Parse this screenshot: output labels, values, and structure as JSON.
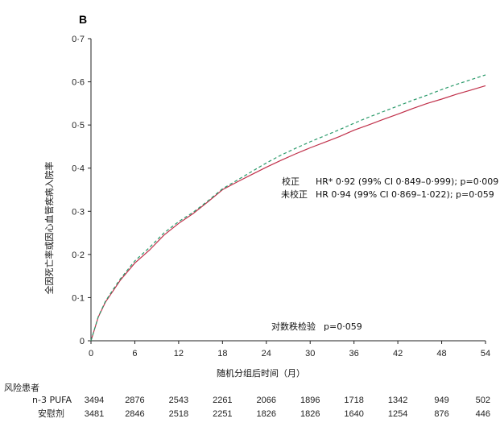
{
  "chart_data": {
    "type": "line",
    "panel_label": "B",
    "xlabel": "随机分组后时间（月）",
    "ylabel": "全因死亡率或因心血管疾病入院率",
    "xlim": [
      0,
      54
    ],
    "ylim": [
      0,
      0.7
    ],
    "xticks": [
      0,
      6,
      12,
      18,
      24,
      30,
      36,
      42,
      48,
      54
    ],
    "xtick_labels": [
      "0",
      "6",
      "12",
      "18",
      "24",
      "30",
      "36",
      "42",
      "48",
      "54"
    ],
    "yticks": [
      0,
      0.1,
      0.2,
      0.3,
      0.4,
      0.5,
      0.6,
      0.7
    ],
    "ytick_labels": [
      "0",
      "0·1",
      "0·2",
      "0·3",
      "0·4",
      "0·5",
      "0·6",
      "0·7"
    ],
    "grid": false,
    "series": [
      {
        "name": "n-3 PUFA",
        "color": "#c0304a",
        "style": "solid",
        "x": [
          0,
          1,
          2,
          3,
          4,
          6,
          8,
          10,
          12,
          14,
          16,
          18,
          20,
          22,
          24,
          26,
          28,
          30,
          32,
          34,
          36,
          38,
          40,
          42,
          44,
          46,
          48,
          50,
          52,
          54
        ],
        "y": [
          0,
          0.055,
          0.09,
          0.115,
          0.14,
          0.18,
          0.21,
          0.245,
          0.272,
          0.295,
          0.322,
          0.35,
          0.368,
          0.385,
          0.402,
          0.418,
          0.433,
          0.447,
          0.46,
          0.473,
          0.488,
          0.5,
          0.513,
          0.525,
          0.538,
          0.55,
          0.56,
          0.571,
          0.581,
          0.591
        ]
      },
      {
        "name": "安慰剂",
        "color": "#2a9a6a",
        "style": "dashed",
        "x": [
          0,
          1,
          2,
          3,
          4,
          6,
          8,
          10,
          12,
          14,
          16,
          18,
          20,
          22,
          24,
          26,
          28,
          30,
          32,
          34,
          36,
          38,
          40,
          42,
          44,
          46,
          48,
          50,
          52,
          54
        ],
        "y": [
          0,
          0.056,
          0.092,
          0.118,
          0.143,
          0.185,
          0.216,
          0.25,
          0.276,
          0.298,
          0.324,
          0.352,
          0.372,
          0.392,
          0.412,
          0.43,
          0.446,
          0.461,
          0.475,
          0.489,
          0.504,
          0.518,
          0.531,
          0.544,
          0.557,
          0.569,
          0.582,
          0.594,
          0.605,
          0.616
        ]
      }
    ],
    "annotations": {
      "adjusted_label": "校正",
      "adjusted_text": "HR* 0·92 (99% CI 0·849–0·999); p=0·009",
      "unadjusted_label": "未校正",
      "unadjusted_text": "HR 0·94 (99% CI 0·869–1·022); p=0·059",
      "logrank_label": "对数秩检验",
      "logrank_text": "p=0·059"
    },
    "risk_table": {
      "title": "风险患者",
      "time_points": [
        0,
        6,
        12,
        18,
        24,
        30,
        36,
        42,
        48,
        54
      ],
      "rows": [
        {
          "label": "n-3 PUFA",
          "values": [
            "3494",
            "2876",
            "2543",
            "2261",
            "2066",
            "1896",
            "1718",
            "1342",
            "949",
            "502"
          ]
        },
        {
          "label": "安慰剂",
          "values": [
            "3481",
            "2846",
            "2518",
            "2251",
            "1826",
            "1826",
            "1640",
            "1254",
            "876",
            "446"
          ]
        }
      ]
    }
  }
}
